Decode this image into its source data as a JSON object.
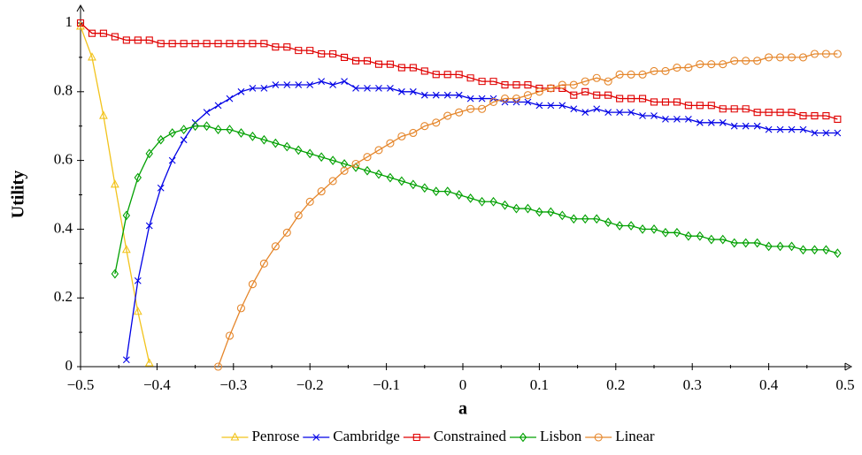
{
  "chart_data": {
    "type": "line",
    "xlabel": "a",
    "ylabel": "Utility",
    "xlim": [
      -0.5,
      0.5
    ],
    "ylim": [
      0,
      1
    ],
    "xticks": [
      {
        "value": -0.5,
        "label": "−0.5"
      },
      {
        "value": -0.4,
        "label": "−0.4"
      },
      {
        "value": -0.3,
        "label": "−0.3"
      },
      {
        "value": -0.2,
        "label": "−0.2"
      },
      {
        "value": -0.1,
        "label": "−0.1"
      },
      0,
      0.1,
      0.2,
      0.3,
      0.4,
      0.5
    ],
    "yticks": [
      0,
      0.2,
      0.4,
      0.6,
      0.8,
      1
    ],
    "legend": "bottom",
    "x": [
      -0.5,
      -0.485,
      -0.47,
      -0.455,
      -0.44,
      -0.425,
      -0.41,
      -0.395,
      -0.38,
      -0.365,
      -0.35,
      -0.335,
      -0.32,
      -0.305,
      -0.29,
      -0.275,
      -0.26,
      -0.245,
      -0.23,
      -0.215,
      -0.2,
      -0.185,
      -0.17,
      -0.155,
      -0.14,
      -0.125,
      -0.11,
      -0.095,
      -0.08,
      -0.065,
      -0.05,
      -0.035,
      -0.02,
      -0.005,
      0.01,
      0.025,
      0.04,
      0.055,
      0.07,
      0.085,
      0.1,
      0.115,
      0.13,
      0.145,
      0.16,
      0.175,
      0.19,
      0.205,
      0.22,
      0.235,
      0.25,
      0.265,
      0.28,
      0.295,
      0.31,
      0.325,
      0.34,
      0.355,
      0.37,
      0.385,
      0.4,
      0.415,
      0.43,
      0.445,
      0.46,
      0.475,
      0.49
    ],
    "series": [
      {
        "name": "Penrose",
        "color": "#f2c31b",
        "marker": "triangle",
        "values": [
          0.99,
          0.9,
          0.73,
          0.53,
          0.34,
          0.16,
          0.01,
          null,
          null,
          null,
          null,
          null,
          null,
          null,
          null,
          null,
          null,
          null,
          null,
          null,
          null,
          null,
          null,
          null,
          null,
          null,
          null,
          null,
          null,
          null,
          null,
          null,
          null,
          null,
          null,
          null,
          null,
          null,
          null,
          null,
          null,
          null,
          null,
          null,
          null,
          null,
          null,
          null,
          null,
          null,
          null,
          null,
          null,
          null,
          null,
          null,
          null,
          null,
          null,
          null,
          null,
          null,
          null,
          null,
          null,
          null,
          null
        ]
      },
      {
        "name": "Cambridge",
        "color": "#0000e6",
        "marker": "cross",
        "values": [
          null,
          null,
          null,
          null,
          0.02,
          0.25,
          0.41,
          0.52,
          0.6,
          0.66,
          0.71,
          0.74,
          0.76,
          0.78,
          0.8,
          0.81,
          0.81,
          0.82,
          0.82,
          0.82,
          0.82,
          0.83,
          0.82,
          0.83,
          0.81,
          0.81,
          0.81,
          0.81,
          0.8,
          0.8,
          0.79,
          0.79,
          0.79,
          0.79,
          0.78,
          0.78,
          0.78,
          0.77,
          0.77,
          0.77,
          0.76,
          0.76,
          0.76,
          0.75,
          0.74,
          0.75,
          0.74,
          0.74,
          0.74,
          0.73,
          0.73,
          0.72,
          0.72,
          0.72,
          0.71,
          0.71,
          0.71,
          0.7,
          0.7,
          0.7,
          0.69,
          0.69,
          0.69,
          0.69,
          0.68,
          0.68,
          0.68
        ]
      },
      {
        "name": "Constrained",
        "color": "#e00000",
        "marker": "square",
        "values": [
          1,
          0.97,
          0.97,
          0.96,
          0.95,
          0.95,
          0.95,
          0.94,
          0.94,
          0.94,
          0.94,
          0.94,
          0.94,
          0.94,
          0.94,
          0.94,
          0.94,
          0.93,
          0.93,
          0.92,
          0.92,
          0.91,
          0.91,
          0.9,
          0.89,
          0.89,
          0.88,
          0.88,
          0.87,
          0.87,
          0.86,
          0.85,
          0.85,
          0.85,
          0.84,
          0.83,
          0.83,
          0.82,
          0.82,
          0.82,
          0.81,
          0.81,
          0.81,
          0.79,
          0.8,
          0.79,
          0.79,
          0.78,
          0.78,
          0.78,
          0.77,
          0.77,
          0.77,
          0.76,
          0.76,
          0.76,
          0.75,
          0.75,
          0.75,
          0.74,
          0.74,
          0.74,
          0.74,
          0.73,
          0.73,
          0.73,
          0.72
        ]
      },
      {
        "name": "Lisbon",
        "color": "#00a000",
        "marker": "diamond",
        "values": [
          null,
          null,
          null,
          0.27,
          0.44,
          0.55,
          0.62,
          0.66,
          0.68,
          0.69,
          0.7,
          0.7,
          0.69,
          0.69,
          0.68,
          0.67,
          0.66,
          0.65,
          0.64,
          0.63,
          0.62,
          0.61,
          0.6,
          0.59,
          0.58,
          0.57,
          0.56,
          0.55,
          0.54,
          0.53,
          0.52,
          0.51,
          0.51,
          0.5,
          0.49,
          0.48,
          0.48,
          0.47,
          0.46,
          0.46,
          0.45,
          0.45,
          0.44,
          0.43,
          0.43,
          0.43,
          0.42,
          0.41,
          0.41,
          0.4,
          0.4,
          0.39,
          0.39,
          0.38,
          0.38,
          0.37,
          0.37,
          0.36,
          0.36,
          0.36,
          0.35,
          0.35,
          0.35,
          0.34,
          0.34,
          0.34,
          0.33
        ]
      },
      {
        "name": "Linear",
        "color": "#e5862b",
        "marker": "circle",
        "values": [
          null,
          null,
          null,
          null,
          null,
          null,
          null,
          null,
          null,
          null,
          null,
          null,
          0,
          0.09,
          0.17,
          0.24,
          0.3,
          0.35,
          0.39,
          0.44,
          0.48,
          0.51,
          0.54,
          0.57,
          0.59,
          0.61,
          0.63,
          0.65,
          0.67,
          0.68,
          0.7,
          0.71,
          0.73,
          0.74,
          0.75,
          0.75,
          0.77,
          0.78,
          0.78,
          0.79,
          0.8,
          0.81,
          0.82,
          0.82,
          0.83,
          0.84,
          0.83,
          0.85,
          0.85,
          0.85,
          0.86,
          0.86,
          0.87,
          0.87,
          0.88,
          0.88,
          0.88,
          0.89,
          0.89,
          0.89,
          0.9,
          0.9,
          0.9,
          0.9,
          0.91,
          0.91,
          0.91
        ]
      }
    ]
  }
}
